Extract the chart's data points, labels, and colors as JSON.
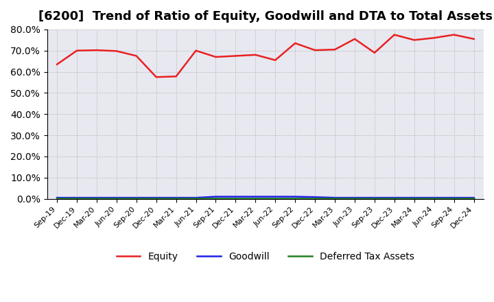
{
  "title": "[6200]  Trend of Ratio of Equity, Goodwill and DTA to Total Assets",
  "x_labels": [
    "Sep-19",
    "Dec-19",
    "Mar-20",
    "Jun-20",
    "Sep-20",
    "Dec-20",
    "Mar-21",
    "Jun-21",
    "Sep-21",
    "Dec-21",
    "Mar-22",
    "Jun-22",
    "Sep-22",
    "Dec-22",
    "Mar-23",
    "Jun-23",
    "Sep-23",
    "Dec-23",
    "Mar-24",
    "Jun-24",
    "Sep-24",
    "Dec-24"
  ],
  "equity": [
    63.5,
    70.0,
    70.2,
    69.8,
    67.5,
    57.5,
    57.8,
    70.0,
    67.0,
    67.5,
    68.0,
    65.5,
    73.5,
    70.2,
    70.5,
    75.5,
    69.0,
    77.5,
    75.0,
    76.0,
    77.5,
    75.5
  ],
  "goodwill": [
    0.5,
    0.5,
    0.5,
    0.5,
    0.5,
    0.5,
    0.5,
    0.5,
    1.0,
    1.0,
    1.0,
    1.0,
    1.0,
    0.8,
    0.5,
    0.5,
    0.5,
    0.5,
    0.5,
    0.5,
    0.5,
    0.5
  ],
  "dta": [
    0.3,
    0.3,
    0.3,
    0.3,
    0.3,
    0.3,
    0.3,
    0.3,
    0.3,
    0.3,
    0.3,
    0.3,
    0.3,
    0.3,
    0.3,
    0.3,
    0.3,
    0.3,
    0.3,
    0.3,
    0.3,
    0.3
  ],
  "equity_color": "#e82020",
  "goodwill_color": "#2020e8",
  "dta_color": "#208020",
  "background_color": "#ffffff",
  "plot_bg_color": "#e8e8f0",
  "ylim": [
    0,
    80
  ],
  "yticks": [
    0,
    10,
    20,
    30,
    40,
    50,
    60,
    70,
    80
  ],
  "title_fontsize": 13,
  "legend_labels": [
    "Equity",
    "Goodwill",
    "Deferred Tax Assets"
  ]
}
